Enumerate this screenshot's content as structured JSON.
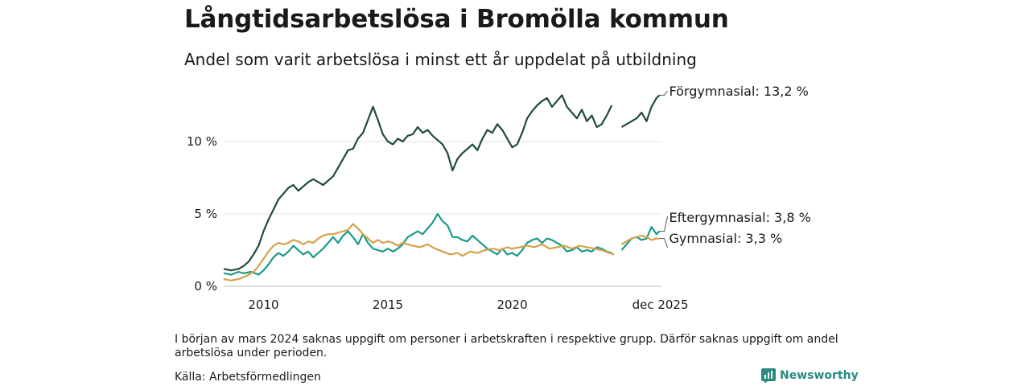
{
  "header": {
    "title": "Långtidsarbetslösa i Bromölla kommun",
    "subtitle": "Andel som varit arbetslösa i minst ett år uppdelat på utbildning"
  },
  "footer": {
    "note": "I början av mars 2024 saknas uppgift om personer i arbetskraften i respektive grupp. Därför saknas uppgift om andel arbetslösa under perioden.",
    "source": "Källa: Arbetsförmedlingen",
    "brand": "Newsworthy",
    "brand_color": "#2a8a80"
  },
  "chart_data": {
    "type": "line",
    "title": "Långtidsarbetslösa i Bromölla kommun",
    "xlabel": "",
    "ylabel": "",
    "xlim": [
      2008.4,
      2026.0
    ],
    "ylim": [
      0,
      13.5
    ],
    "grid": true,
    "y_ticks": [
      {
        "value": 0,
        "label": "0 %"
      },
      {
        "value": 5,
        "label": "5 %"
      },
      {
        "value": 10,
        "label": "10 %"
      }
    ],
    "x_ticks": [
      {
        "value": 2010.0,
        "label": "2010"
      },
      {
        "value": 2015.0,
        "label": "2015"
      },
      {
        "value": 2020.0,
        "label": "2020"
      },
      {
        "value": 2025.92,
        "label": "dec 2025"
      }
    ],
    "gap": [
      2024.15,
      2024.35
    ],
    "series": [
      {
        "name": "Förgymnasial",
        "label": "Förgymnasial: 13,2 %",
        "color": "#1f4a40",
        "points": [
          [
            2008.4,
            1.2
          ],
          [
            2008.7,
            1.1
          ],
          [
            2009.0,
            1.2
          ],
          [
            2009.2,
            1.4
          ],
          [
            2009.4,
            1.7
          ],
          [
            2009.6,
            2.2
          ],
          [
            2009.8,
            2.8
          ],
          [
            2010.0,
            3.8
          ],
          [
            2010.2,
            4.6
          ],
          [
            2010.4,
            5.3
          ],
          [
            2010.6,
            6.0
          ],
          [
            2010.8,
            6.4
          ],
          [
            2011.0,
            6.8
          ],
          [
            2011.2,
            7.0
          ],
          [
            2011.4,
            6.6
          ],
          [
            2011.6,
            6.9
          ],
          [
            2011.8,
            7.2
          ],
          [
            2012.0,
            7.4
          ],
          [
            2012.2,
            7.2
          ],
          [
            2012.4,
            7.0
          ],
          [
            2012.6,
            7.3
          ],
          [
            2012.8,
            7.6
          ],
          [
            2013.0,
            8.2
          ],
          [
            2013.2,
            8.8
          ],
          [
            2013.4,
            9.4
          ],
          [
            2013.6,
            9.5
          ],
          [
            2013.8,
            10.2
          ],
          [
            2014.0,
            10.6
          ],
          [
            2014.2,
            11.5
          ],
          [
            2014.4,
            12.4
          ],
          [
            2014.6,
            11.5
          ],
          [
            2014.8,
            10.5
          ],
          [
            2015.0,
            10.0
          ],
          [
            2015.2,
            9.8
          ],
          [
            2015.4,
            10.2
          ],
          [
            2015.6,
            10.0
          ],
          [
            2015.8,
            10.4
          ],
          [
            2016.0,
            10.5
          ],
          [
            2016.2,
            11.0
          ],
          [
            2016.4,
            10.6
          ],
          [
            2016.6,
            10.8
          ],
          [
            2016.8,
            10.4
          ],
          [
            2017.0,
            10.1
          ],
          [
            2017.2,
            9.8
          ],
          [
            2017.4,
            9.2
          ],
          [
            2017.6,
            8.0
          ],
          [
            2017.8,
            8.8
          ],
          [
            2018.0,
            9.2
          ],
          [
            2018.2,
            9.5
          ],
          [
            2018.4,
            9.8
          ],
          [
            2018.6,
            9.4
          ],
          [
            2018.8,
            10.2
          ],
          [
            2019.0,
            10.8
          ],
          [
            2019.2,
            10.6
          ],
          [
            2019.4,
            11.2
          ],
          [
            2019.6,
            10.8
          ],
          [
            2019.8,
            10.2
          ],
          [
            2020.0,
            9.6
          ],
          [
            2020.2,
            9.8
          ],
          [
            2020.4,
            10.6
          ],
          [
            2020.6,
            11.6
          ],
          [
            2020.8,
            12.1
          ],
          [
            2021.0,
            12.5
          ],
          [
            2021.2,
            12.8
          ],
          [
            2021.4,
            13.0
          ],
          [
            2021.6,
            12.4
          ],
          [
            2021.8,
            12.8
          ],
          [
            2022.0,
            13.2
          ],
          [
            2022.2,
            12.4
          ],
          [
            2022.4,
            12.0
          ],
          [
            2022.6,
            11.6
          ],
          [
            2022.8,
            12.2
          ],
          [
            2023.0,
            11.4
          ],
          [
            2023.2,
            11.8
          ],
          [
            2023.4,
            11.0
          ],
          [
            2023.6,
            11.2
          ],
          [
            2023.8,
            11.8
          ],
          [
            2024.0,
            12.5
          ],
          [
            2024.4,
            11.0
          ],
          [
            2024.6,
            11.2
          ],
          [
            2024.8,
            11.4
          ],
          [
            2025.0,
            11.6
          ],
          [
            2025.2,
            12.0
          ],
          [
            2025.4,
            11.4
          ],
          [
            2025.6,
            12.4
          ],
          [
            2025.8,
            13.0
          ],
          [
            2025.92,
            13.2
          ]
        ]
      },
      {
        "name": "Eftergymnasial",
        "label": "Eftergymnasial:  3,8 %",
        "color": "#1a9a8a",
        "points": [
          [
            2008.4,
            0.9
          ],
          [
            2008.7,
            0.8
          ],
          [
            2009.0,
            1.0
          ],
          [
            2009.2,
            0.9
          ],
          [
            2009.5,
            1.0
          ],
          [
            2009.8,
            0.8
          ],
          [
            2010.0,
            1.1
          ],
          [
            2010.2,
            1.5
          ],
          [
            2010.4,
            2.0
          ],
          [
            2010.6,
            2.3
          ],
          [
            2010.8,
            2.1
          ],
          [
            2011.0,
            2.4
          ],
          [
            2011.2,
            2.8
          ],
          [
            2011.4,
            2.5
          ],
          [
            2011.6,
            2.2
          ],
          [
            2011.8,
            2.4
          ],
          [
            2012.0,
            2.0
          ],
          [
            2012.2,
            2.3
          ],
          [
            2012.4,
            2.6
          ],
          [
            2012.6,
            3.0
          ],
          [
            2012.8,
            3.4
          ],
          [
            2013.0,
            3.0
          ],
          [
            2013.2,
            3.5
          ],
          [
            2013.4,
            3.8
          ],
          [
            2013.6,
            3.4
          ],
          [
            2013.8,
            2.9
          ],
          [
            2014.0,
            3.6
          ],
          [
            2014.2,
            3.0
          ],
          [
            2014.4,
            2.6
          ],
          [
            2014.6,
            2.5
          ],
          [
            2014.8,
            2.4
          ],
          [
            2015.0,
            2.6
          ],
          [
            2015.2,
            2.4
          ],
          [
            2015.4,
            2.6
          ],
          [
            2015.6,
            2.9
          ],
          [
            2015.8,
            3.4
          ],
          [
            2016.0,
            3.6
          ],
          [
            2016.2,
            3.8
          ],
          [
            2016.4,
            3.6
          ],
          [
            2016.6,
            4.0
          ],
          [
            2016.8,
            4.4
          ],
          [
            2017.0,
            5.0
          ],
          [
            2017.2,
            4.5
          ],
          [
            2017.4,
            4.2
          ],
          [
            2017.6,
            3.4
          ],
          [
            2017.8,
            3.4
          ],
          [
            2018.0,
            3.2
          ],
          [
            2018.2,
            3.1
          ],
          [
            2018.4,
            3.5
          ],
          [
            2018.6,
            3.2
          ],
          [
            2018.8,
            2.9
          ],
          [
            2019.0,
            2.6
          ],
          [
            2019.2,
            2.4
          ],
          [
            2019.4,
            2.2
          ],
          [
            2019.6,
            2.6
          ],
          [
            2019.8,
            2.2
          ],
          [
            2020.0,
            2.3
          ],
          [
            2020.2,
            2.1
          ],
          [
            2020.4,
            2.5
          ],
          [
            2020.6,
            3.0
          ],
          [
            2020.8,
            3.2
          ],
          [
            2021.0,
            3.3
          ],
          [
            2021.2,
            3.0
          ],
          [
            2021.4,
            3.3
          ],
          [
            2021.6,
            3.2
          ],
          [
            2021.8,
            3.0
          ],
          [
            2022.0,
            2.8
          ],
          [
            2022.2,
            2.4
          ],
          [
            2022.4,
            2.5
          ],
          [
            2022.6,
            2.7
          ],
          [
            2022.8,
            2.4
          ],
          [
            2023.0,
            2.5
          ],
          [
            2023.2,
            2.4
          ],
          [
            2023.4,
            2.7
          ],
          [
            2023.6,
            2.6
          ],
          [
            2023.8,
            2.4
          ],
          [
            2024.0,
            2.3
          ],
          [
            2024.4,
            2.5
          ],
          [
            2024.6,
            2.9
          ],
          [
            2024.8,
            3.3
          ],
          [
            2025.0,
            3.4
          ],
          [
            2025.2,
            3.2
          ],
          [
            2025.4,
            3.3
          ],
          [
            2025.6,
            4.1
          ],
          [
            2025.8,
            3.6
          ],
          [
            2025.92,
            3.8
          ]
        ]
      },
      {
        "name": "Gymnasial",
        "label": "Gymnasial:  3,3 %",
        "color": "#d4a24a",
        "points": [
          [
            2008.4,
            0.5
          ],
          [
            2008.7,
            0.4
          ],
          [
            2009.0,
            0.5
          ],
          [
            2009.3,
            0.7
          ],
          [
            2009.6,
            1.0
          ],
          [
            2009.8,
            1.4
          ],
          [
            2010.0,
            1.9
          ],
          [
            2010.2,
            2.4
          ],
          [
            2010.4,
            2.8
          ],
          [
            2010.6,
            3.0
          ],
          [
            2010.8,
            2.9
          ],
          [
            2011.0,
            3.0
          ],
          [
            2011.2,
            3.2
          ],
          [
            2011.4,
            3.1
          ],
          [
            2011.6,
            2.9
          ],
          [
            2011.8,
            3.1
          ],
          [
            2012.0,
            3.0
          ],
          [
            2012.2,
            3.3
          ],
          [
            2012.4,
            3.5
          ],
          [
            2012.6,
            3.6
          ],
          [
            2012.8,
            3.6
          ],
          [
            2013.0,
            3.7
          ],
          [
            2013.2,
            3.8
          ],
          [
            2013.4,
            3.9
          ],
          [
            2013.6,
            4.3
          ],
          [
            2013.8,
            4.0
          ],
          [
            2014.0,
            3.6
          ],
          [
            2014.2,
            3.3
          ],
          [
            2014.4,
            3.0
          ],
          [
            2014.6,
            3.2
          ],
          [
            2014.8,
            3.0
          ],
          [
            2015.0,
            3.1
          ],
          [
            2015.2,
            3.0
          ],
          [
            2015.4,
            2.8
          ],
          [
            2015.6,
            3.0
          ],
          [
            2015.8,
            2.9
          ],
          [
            2016.0,
            2.8
          ],
          [
            2016.3,
            2.7
          ],
          [
            2016.6,
            2.9
          ],
          [
            2016.9,
            2.6
          ],
          [
            2017.2,
            2.4
          ],
          [
            2017.5,
            2.2
          ],
          [
            2017.8,
            2.3
          ],
          [
            2018.0,
            2.1
          ],
          [
            2018.3,
            2.4
          ],
          [
            2018.6,
            2.3
          ],
          [
            2018.9,
            2.5
          ],
          [
            2019.2,
            2.6
          ],
          [
            2019.5,
            2.5
          ],
          [
            2019.8,
            2.7
          ],
          [
            2020.0,
            2.6
          ],
          [
            2020.3,
            2.7
          ],
          [
            2020.6,
            2.8
          ],
          [
            2020.9,
            2.7
          ],
          [
            2021.2,
            2.9
          ],
          [
            2021.5,
            2.6
          ],
          [
            2021.8,
            2.7
          ],
          [
            2022.1,
            2.8
          ],
          [
            2022.4,
            2.6
          ],
          [
            2022.7,
            2.8
          ],
          [
            2023.0,
            2.7
          ],
          [
            2023.3,
            2.6
          ],
          [
            2023.6,
            2.5
          ],
          [
            2023.9,
            2.3
          ],
          [
            2024.1,
            2.2
          ],
          [
            2024.4,
            2.9
          ],
          [
            2024.6,
            3.1
          ],
          [
            2024.8,
            3.3
          ],
          [
            2025.0,
            3.4
          ],
          [
            2025.2,
            3.5
          ],
          [
            2025.4,
            3.4
          ],
          [
            2025.6,
            3.2
          ],
          [
            2025.8,
            3.3
          ],
          [
            2025.92,
            3.3
          ]
        ]
      }
    ]
  }
}
